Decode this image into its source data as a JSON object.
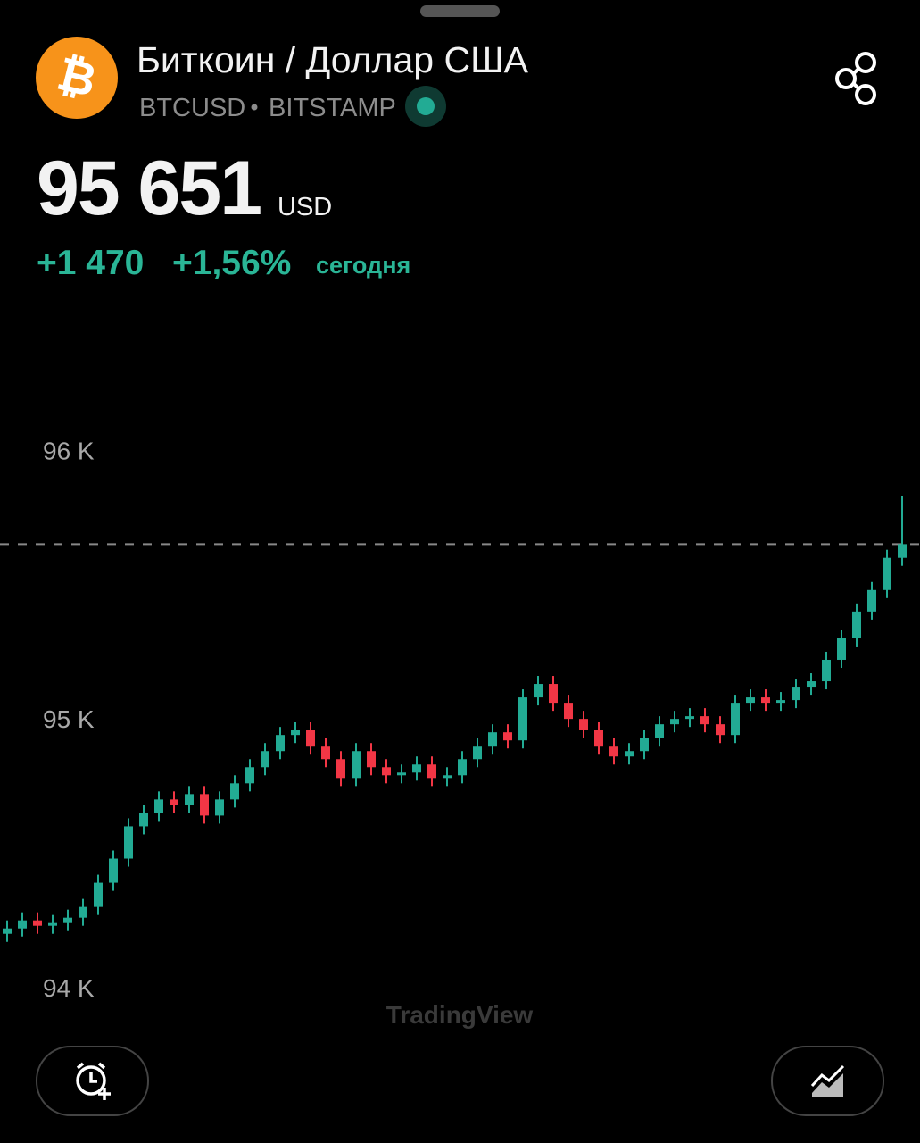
{
  "header": {
    "title": "Биткоин / Доллар США",
    "symbol": "BTCUSD",
    "exchange": "BITSTAMP"
  },
  "price": {
    "value": "95 651",
    "currency": "USD"
  },
  "change": {
    "absolute": "+1 470",
    "percent": "+1,56%",
    "period": "сегодня"
  },
  "watermark": "TradingView",
  "chart_data": {
    "type": "candlestick",
    "ylim": [
      93820,
      96580
    ],
    "yticks": [
      {
        "value": 96000,
        "label": "96 K"
      },
      {
        "value": 95000,
        "label": "95 K"
      },
      {
        "value": 94000,
        "label": "94 K"
      }
    ],
    "last_price": 95651,
    "up_color": "#22ab94",
    "down_color": "#f23645",
    "open": [
      94200,
      94220,
      94250,
      94230,
      94240,
      94260,
      94300,
      94390,
      94480,
      94600,
      94650,
      94700,
      94680,
      94720,
      94640,
      94700,
      94760,
      94820,
      94880,
      94940,
      94960,
      94900,
      94850,
      94780,
      94880,
      94820,
      94790,
      94800,
      94830,
      94780,
      94790,
      94850,
      94900,
      94950,
      94920,
      95080,
      95130,
      95060,
      95000,
      94960,
      94900,
      94860,
      94880,
      94930,
      94980,
      95000,
      95010,
      94980,
      94940,
      95060,
      95080,
      95060,
      95070,
      95120,
      95140,
      95220,
      95300,
      95400,
      95480,
      95600
    ],
    "high": [
      94250,
      94280,
      94280,
      94270,
      94290,
      94330,
      94420,
      94510,
      94630,
      94680,
      94730,
      94730,
      94750,
      94750,
      94730,
      94790,
      94850,
      94910,
      94970,
      94990,
      94990,
      94930,
      94880,
      94910,
      94910,
      94850,
      94830,
      94860,
      94860,
      94820,
      94880,
      94930,
      94980,
      94980,
      95110,
      95160,
      95160,
      95090,
      95030,
      94990,
      94930,
      94910,
      94960,
      95010,
      95030,
      95040,
      95040,
      95010,
      95090,
      95110,
      95110,
      95100,
      95150,
      95170,
      95250,
      95330,
      95430,
      95510,
      95630,
      95830
    ],
    "low": [
      94170,
      94190,
      94200,
      94200,
      94210,
      94230,
      94270,
      94360,
      94450,
      94570,
      94620,
      94650,
      94650,
      94610,
      94610,
      94670,
      94730,
      94790,
      94850,
      94910,
      94870,
      94820,
      94750,
      94750,
      94790,
      94760,
      94760,
      94770,
      94750,
      94750,
      94760,
      94820,
      94870,
      94890,
      94890,
      95050,
      95030,
      94970,
      94930,
      94870,
      94830,
      94830,
      94850,
      94900,
      94950,
      94970,
      94950,
      94910,
      94910,
      95030,
      95030,
      95030,
      95040,
      95090,
      95110,
      95190,
      95270,
      95370,
      95450,
      95570
    ],
    "close": [
      94220,
      94250,
      94230,
      94240,
      94260,
      94300,
      94390,
      94480,
      94600,
      94650,
      94700,
      94680,
      94720,
      94640,
      94700,
      94760,
      94820,
      94880,
      94940,
      94960,
      94900,
      94850,
      94780,
      94880,
      94820,
      94790,
      94800,
      94830,
      94780,
      94790,
      94850,
      94900,
      94950,
      94920,
      95080,
      95130,
      95060,
      95000,
      94960,
      94900,
      94860,
      94880,
      94930,
      94980,
      95000,
      95010,
      94980,
      94940,
      95060,
      95080,
      95060,
      95070,
      95120,
      95140,
      95220,
      95300,
      95400,
      95480,
      95600,
      95651
    ]
  }
}
